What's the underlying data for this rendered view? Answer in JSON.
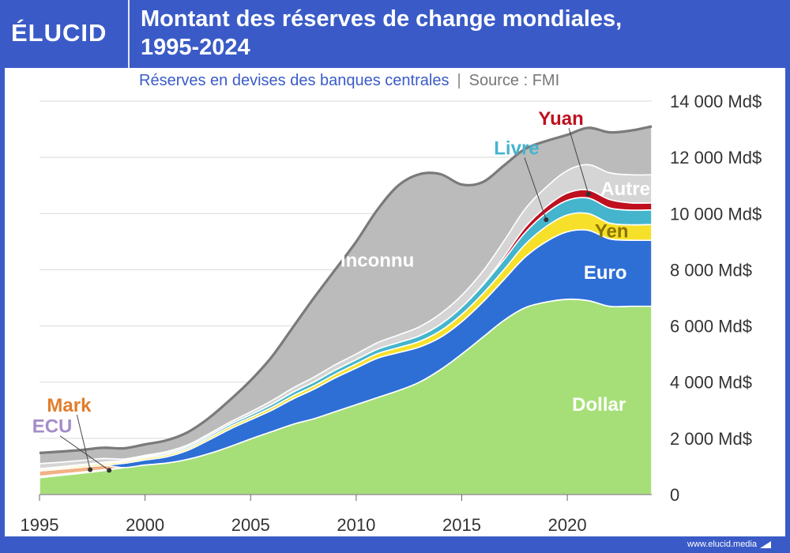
{
  "header": {
    "logo": "ÉLUCID",
    "title_line1": "Montant des réserves de change mondiales,",
    "title_line2": "1995-2024",
    "subtitle": "Réserves en devises des banques centrales",
    "separator": "|",
    "source": "Source : FMI"
  },
  "footer": {
    "url": "www.elucid.media"
  },
  "colors": {
    "brand_blue": "#3a5bc7",
    "dollar": "#a6df78",
    "euro": "#2e6fd6",
    "yen": "#f7e02a",
    "livre": "#45b4cd",
    "yuan": "#bf1020",
    "autres": "#d5d5d5",
    "inconnu": "#bbbbbb",
    "mark": "#f2b183",
    "ecu": "#c7b6e0",
    "total_line": "#7a7a7a"
  },
  "chart_data": {
    "type": "area",
    "title": "Montant des réserves de change mondiales, 1995-2024",
    "subtitle": "Réserves en devises des banques centrales",
    "stacked": true,
    "ylim": [
      0,
      14000
    ],
    "xlim": [
      1995,
      2024
    ],
    "y_ticks": [
      0,
      2000,
      4000,
      6000,
      8000,
      10000,
      12000,
      14000
    ],
    "y_tick_labels": [
      "0",
      "2 000 Md$",
      "4 000 Md$",
      "6 000 Md$",
      "8 000 Md$",
      "10 000 Md$",
      "12 000 Md$",
      "14 000 Md$"
    ],
    "x_ticks": [
      1995,
      2000,
      2005,
      2010,
      2015,
      2020
    ],
    "x_tick_labels": [
      "1995",
      "2000",
      "2005",
      "2010",
      "2015",
      "2020"
    ],
    "grid": true,
    "x": [
      1995,
      1996,
      1997,
      1998,
      1999,
      2000,
      2001,
      2002,
      2003,
      2004,
      2005,
      2006,
      2007,
      2008,
      2009,
      2010,
      2011,
      2012,
      2013,
      2014,
      2015,
      2016,
      2017,
      2018,
      2019,
      2020,
      2021,
      2022,
      2023,
      2024
    ],
    "series": [
      {
        "name": "Dollar",
        "values": [
          600,
          680,
          760,
          850,
          960,
          1050,
          1120,
          1250,
          1450,
          1700,
          1980,
          2240,
          2500,
          2700,
          2950,
          3200,
          3450,
          3700,
          4000,
          4450,
          5000,
          5600,
          6200,
          6650,
          6850,
          6950,
          6900,
          6700,
          6700,
          6700
        ]
      },
      {
        "name": "Euro",
        "values": [
          0,
          0,
          0,
          0,
          150,
          180,
          220,
          320,
          480,
          620,
          680,
          760,
          900,
          1050,
          1200,
          1300,
          1400,
          1350,
          1250,
          1150,
          1150,
          1250,
          1450,
          1800,
          2150,
          2400,
          2500,
          2400,
          2350,
          2350
        ]
      },
      {
        "name": "Yen",
        "values": [
          50,
          50,
          55,
          60,
          60,
          65,
          70,
          70,
          80,
          90,
          90,
          100,
          110,
          120,
          130,
          150,
          160,
          180,
          200,
          230,
          260,
          300,
          350,
          450,
          540,
          600,
          600,
          560,
          550,
          560
        ]
      },
      {
        "name": "Livre",
        "values": [
          30,
          35,
          40,
          45,
          45,
          50,
          55,
          60,
          70,
          80,
          90,
          110,
          130,
          140,
          145,
          150,
          160,
          180,
          200,
          230,
          260,
          300,
          360,
          420,
          480,
          520,
          550,
          540,
          520,
          520
        ]
      },
      {
        "name": "Yuan",
        "values": [
          0,
          0,
          0,
          0,
          0,
          0,
          0,
          0,
          0,
          0,
          0,
          0,
          0,
          0,
          0,
          0,
          0,
          0,
          0,
          0,
          0,
          30,
          100,
          190,
          220,
          260,
          290,
          300,
          260,
          250
        ]
      },
      {
        "name": "Autres",
        "values": [
          180,
          160,
          150,
          140,
          50,
          50,
          60,
          60,
          70,
          80,
          100,
          130,
          150,
          170,
          190,
          200,
          230,
          270,
          320,
          380,
          420,
          470,
          560,
          650,
          700,
          800,
          900,
          950,
          1000,
          1000
        ]
      },
      {
        "name": "Inconnu",
        "values": [
          380,
          380,
          370,
          380,
          380,
          390,
          400,
          450,
          560,
          780,
          1120,
          1560,
          2160,
          2820,
          3380,
          4000,
          4730,
          5320,
          5430,
          4960,
          3940,
          3170,
          2690,
          2140,
          1640,
          1270,
          1310,
          1440,
          1570,
          1720
        ]
      },
      {
        "name": "Mark",
        "values": [
          190,
          180,
          170,
          160,
          0,
          0,
          0,
          0,
          0,
          0,
          0,
          0,
          0,
          0,
          0,
          0,
          0,
          0,
          0,
          0,
          0,
          0,
          0,
          0,
          0,
          0,
          0,
          0,
          0,
          0
        ]
      },
      {
        "name": "ECU",
        "values": [
          50,
          45,
          40,
          30,
          0,
          0,
          0,
          0,
          0,
          0,
          0,
          0,
          0,
          0,
          0,
          0,
          0,
          0,
          0,
          0,
          0,
          0,
          0,
          0,
          0,
          0,
          0,
          0,
          0,
          0
        ]
      }
    ],
    "stack_order": [
      "Dollar",
      "ECU",
      "Mark",
      "Euro",
      "Yen",
      "Livre",
      "Yuan",
      "Autres",
      "Inconnu"
    ],
    "total_line": true,
    "labels": [
      "Dollar",
      "Euro",
      "Yen",
      "Autres",
      "Inconnu",
      "Livre",
      "Yuan",
      "Mark",
      "ECU"
    ]
  }
}
